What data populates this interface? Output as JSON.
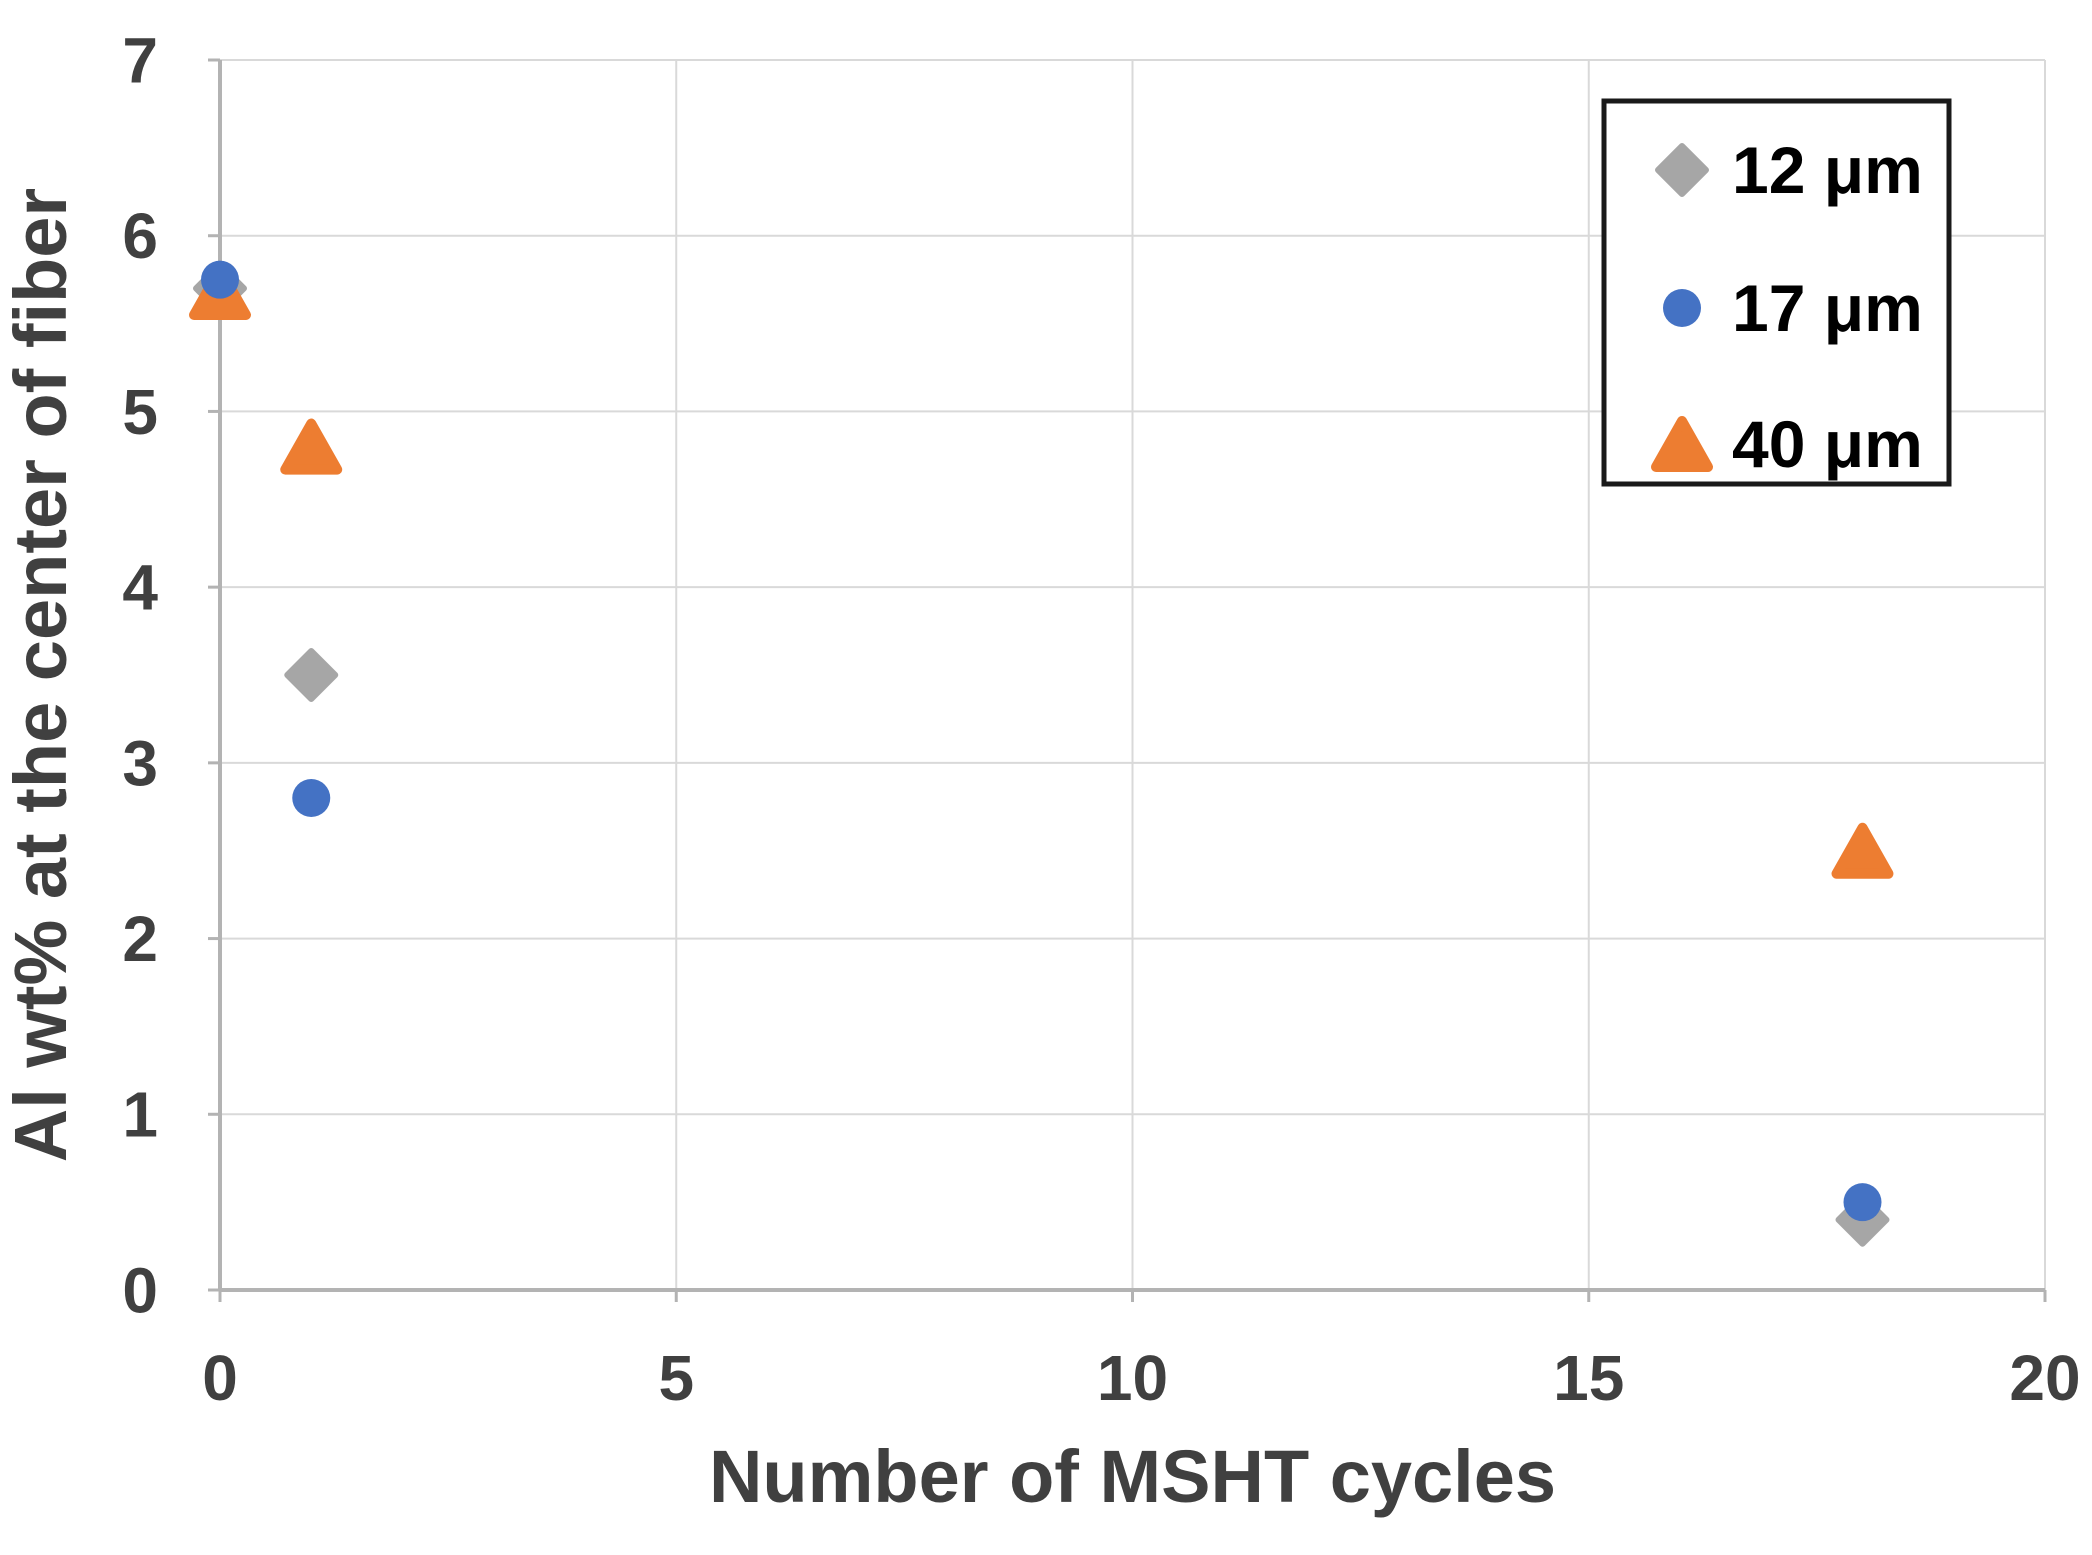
{
  "figure": {
    "background": "#ffffff"
  },
  "chart_data": {
    "type": "scatter",
    "title": "",
    "xlabel": "Number of MSHT cycles",
    "ylabel": "Al wt% at the center of fiber",
    "xlim": [
      0,
      20
    ],
    "ylim": [
      0,
      7
    ],
    "x_ticks": [
      0,
      5,
      10,
      15,
      20
    ],
    "y_ticks": [
      0,
      1,
      2,
      3,
      4,
      5,
      6,
      7
    ],
    "grid": true,
    "legend": {
      "position": "top-right",
      "fill": "#ffffff",
      "border_color": "#1a1a1a"
    },
    "series": [
      {
        "name": "12 μm",
        "marker": "diamond",
        "color": "#A6A6A6",
        "points": [
          [
            0,
            5.7
          ],
          [
            1,
            3.5
          ],
          [
            18,
            0.4
          ]
        ]
      },
      {
        "name": "17 μm",
        "marker": "circle",
        "color": "#4472C4",
        "points": [
          [
            0,
            5.75
          ],
          [
            1,
            2.8
          ],
          [
            18,
            0.5
          ]
        ]
      },
      {
        "name": "40 μm",
        "marker": "triangle",
        "color": "#ED7D31",
        "points": [
          [
            0,
            5.68
          ],
          [
            1,
            4.8
          ],
          [
            18,
            2.5
          ]
        ]
      }
    ],
    "colors": {
      "grid": "#D9D9D9",
      "axis": "#B3B3B3",
      "tick_text": "#404040",
      "legend_text": "#000000"
    }
  }
}
